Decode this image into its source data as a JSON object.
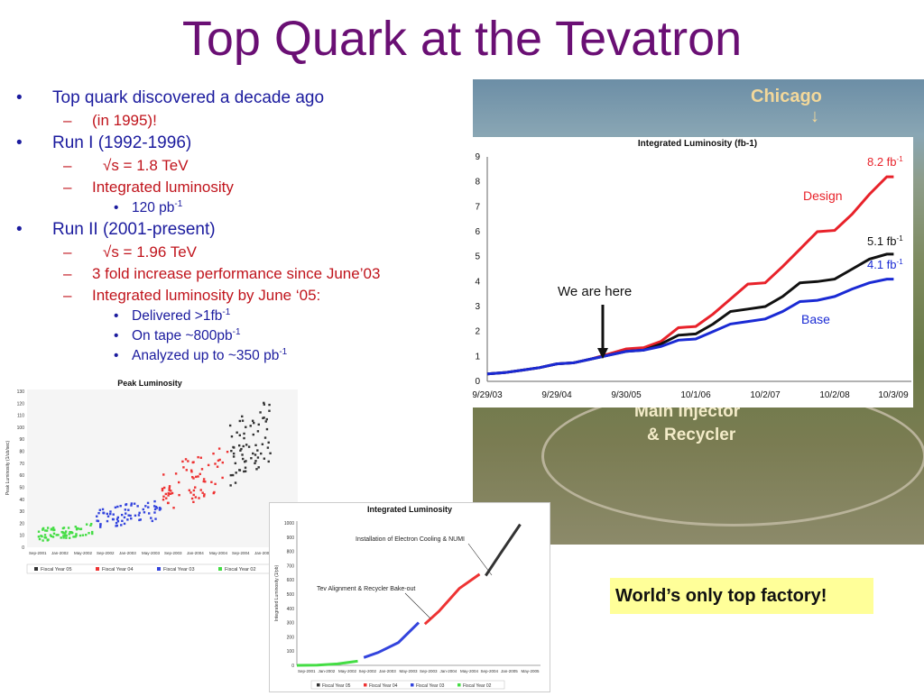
{
  "slide": {
    "title": "Top Quark at the Tevatron",
    "bullets": [
      {
        "text": "Top quark discovered a decade ago"
      },
      {
        "text": "(in 1995)!"
      },
      {
        "text": "Run I (1992-1996)"
      },
      {
        "text": "√s = 1.8 TeV"
      },
      {
        "text": "Integrated luminosity"
      },
      {
        "text": "120 pb",
        "sup": "-1"
      },
      {
        "text": "Run II (2001-present)"
      },
      {
        "text": "√s = 1.96 TeV"
      },
      {
        "text": "3 fold increase performance since June’03"
      },
      {
        "text": "Integrated luminosity by June ‘05:"
      },
      {
        "text": "Delivered >1fb",
        "sup": "-1"
      },
      {
        "text": "On tape ~800pb",
        "sup": "-1"
      },
      {
        "text": "Analyzed up to ~350 pb",
        "sup": "-1"
      }
    ],
    "aerial": {
      "chicago_label": "Chicago",
      "arrow": "↓",
      "main_injector_label_1": "Main Injector",
      "main_injector_label_2": "& Recycler"
    },
    "callout": "World’s only top factory!",
    "colors": {
      "title": "#6a0f74",
      "bullet_l1": "#1b1b9e",
      "bullet_l2": "#c0141c"
    }
  },
  "chart_data": [
    {
      "type": "line",
      "title": "Integrated Luminosity (fb-1)",
      "x_tick_labels": [
        "9/29/03",
        "9/29/04",
        "9/30/05",
        "10/1/06",
        "10/2/07",
        "10/2/08",
        "10/3/09"
      ],
      "ylim": [
        0,
        9
      ],
      "y_ticks": [
        "0",
        "1",
        "2",
        "3",
        "4",
        "5",
        "6",
        "7",
        "8",
        "9"
      ],
      "grid": false,
      "series": [
        {
          "name": "Design",
          "color": "#e8222a",
          "end_label": "8.2 fb",
          "end_sup": "-1",
          "points": [
            [
              0,
              0.3
            ],
            [
              0.25,
              0.35
            ],
            [
              0.5,
              0.45
            ],
            [
              0.75,
              0.55
            ],
            [
              1,
              0.7
            ],
            [
              1.25,
              0.75
            ],
            [
              1.5,
              0.9
            ],
            [
              1.75,
              1.1
            ],
            [
              2,
              1.3
            ],
            [
              2.25,
              1.35
            ],
            [
              2.5,
              1.6
            ],
            [
              2.75,
              2.15
            ],
            [
              3,
              2.2
            ],
            [
              3.25,
              2.7
            ],
            [
              3.5,
              3.3
            ],
            [
              3.75,
              3.9
            ],
            [
              4,
              3.95
            ],
            [
              4.25,
              4.6
            ],
            [
              4.5,
              5.3
            ],
            [
              4.75,
              6
            ],
            [
              5,
              6.05
            ],
            [
              5.25,
              6.7
            ],
            [
              5.5,
              7.5
            ],
            [
              5.75,
              8.2
            ],
            [
              5.85,
              8.2
            ]
          ]
        },
        {
          "name": "",
          "color": "#111111",
          "end_label": "5.1 fb",
          "end_sup": "-1",
          "points": [
            [
              0,
              0.3
            ],
            [
              0.25,
              0.35
            ],
            [
              0.5,
              0.45
            ],
            [
              0.75,
              0.55
            ],
            [
              1,
              0.7
            ],
            [
              1.25,
              0.75
            ],
            [
              1.5,
              0.9
            ],
            [
              1.75,
              1.05
            ],
            [
              2,
              1.2
            ],
            [
              2.25,
              1.25
            ],
            [
              2.5,
              1.5
            ],
            [
              2.75,
              1.85
            ],
            [
              3,
              1.9
            ],
            [
              3.25,
              2.3
            ],
            [
              3.5,
              2.8
            ],
            [
              3.75,
              2.9
            ],
            [
              4,
              3.0
            ],
            [
              4.25,
              3.4
            ],
            [
              4.5,
              3.95
            ],
            [
              4.75,
              4.0
            ],
            [
              5,
              4.1
            ],
            [
              5.25,
              4.5
            ],
            [
              5.5,
              4.9
            ],
            [
              5.75,
              5.1
            ],
            [
              5.85,
              5.1
            ]
          ]
        },
        {
          "name": "Base",
          "color": "#1a2ad4",
          "end_label": "4.1 fb",
          "end_sup": "-1",
          "points": [
            [
              0,
              0.3
            ],
            [
              0.25,
              0.35
            ],
            [
              0.5,
              0.45
            ],
            [
              0.75,
              0.55
            ],
            [
              1,
              0.7
            ],
            [
              1.25,
              0.75
            ],
            [
              1.5,
              0.9
            ],
            [
              1.75,
              1.05
            ],
            [
              2,
              1.2
            ],
            [
              2.25,
              1.25
            ],
            [
              2.5,
              1.4
            ],
            [
              2.75,
              1.65
            ],
            [
              3,
              1.7
            ],
            [
              3.25,
              2.0
            ],
            [
              3.5,
              2.3
            ],
            [
              3.75,
              2.4
            ],
            [
              4,
              2.5
            ],
            [
              4.25,
              2.8
            ],
            [
              4.5,
              3.2
            ],
            [
              4.75,
              3.25
            ],
            [
              5,
              3.4
            ],
            [
              5.25,
              3.7
            ],
            [
              5.5,
              3.95
            ],
            [
              5.75,
              4.1
            ],
            [
              5.85,
              4.1
            ]
          ]
        }
      ],
      "annotation": {
        "text": "We are here",
        "x": 1.75,
        "y": 1.1
      }
    },
    {
      "type": "scatter",
      "title": "Peak Luminosity",
      "ylabel": "Peak Luminosity (1/ub/sec)",
      "ylim": [
        0,
        130
      ],
      "y_ticks": [
        "0",
        "10",
        "20",
        "30",
        "40",
        "50",
        "60",
        "70",
        "80",
        "90",
        "100",
        "110",
        "120",
        "130"
      ],
      "x_tick_labels": [
        "Sep-2001",
        "Jan-2002",
        "May-2002",
        "Sep-2002",
        "Jan-2003",
        "May-2003",
        "Sep-2003",
        "Jan-2004",
        "May-2004",
        "Sep-2004",
        "Jan-2005",
        "May-2005"
      ],
      "legend": [
        "Fiscal Year 05",
        "Fiscal Year 04",
        "Fiscal Year 03",
        "Fiscal Year 02"
      ],
      "series": [
        {
          "name": "Fiscal Year 02",
          "color": "#44dd44",
          "x_range": [
            0.5,
            3.0
          ],
          "y_range": [
            5,
            20
          ]
        },
        {
          "name": "Fiscal Year 03",
          "color": "#3344dd",
          "x_range": [
            3.0,
            6.0
          ],
          "y_range": [
            15,
            40
          ]
        },
        {
          "name": "Fiscal Year 04",
          "color": "#ee3333",
          "x_range": [
            6.0,
            9.0
          ],
          "y_range": [
            30,
            85
          ]
        },
        {
          "name": "Fiscal Year 05",
          "color": "#333333",
          "x_range": [
            9.0,
            10.8
          ],
          "y_range": [
            50,
            125
          ]
        }
      ]
    },
    {
      "type": "line",
      "title": "Integrated Luminosity",
      "ylabel": "Integrated Luminosity (1/pb)",
      "ylim": [
        0,
        1000
      ],
      "y_ticks": [
        "0",
        "100",
        "200",
        "300",
        "400",
        "500",
        "600",
        "700",
        "800",
        "900",
        "1000"
      ],
      "x_tick_labels": [
        "Sep-2001",
        "Jan-2002",
        "May-2002",
        "Sep-2002",
        "Jan-2003",
        "May-2003",
        "Sep-2003",
        "Jan-2004",
        "May-2004",
        "Sep-2004",
        "Jan-2005",
        "May-2005"
      ],
      "legend": [
        "Fiscal Year 05",
        "Fiscal Year 04",
        "Fiscal Year 03",
        "Fiscal Year 02"
      ],
      "annotations": [
        "Installation of Electron Cooling & NUMI",
        "Tev Alignment & Recycler Bake-out"
      ],
      "series": [
        {
          "name": "Fiscal Year 02",
          "color": "#44dd44",
          "points": [
            [
              0,
              0
            ],
            [
              1,
              2
            ],
            [
              2,
              10
            ],
            [
              3,
              30
            ]
          ]
        },
        {
          "name": "Fiscal Year 03",
          "color": "#3344dd",
          "points": [
            [
              3.3,
              55
            ],
            [
              4,
              90
            ],
            [
              5,
              160
            ],
            [
              6,
              300
            ]
          ]
        },
        {
          "name": "Fiscal Year 04",
          "color": "#ee3333",
          "points": [
            [
              6.3,
              290
            ],
            [
              7,
              380
            ],
            [
              8,
              540
            ],
            [
              9,
              640
            ]
          ]
        },
        {
          "name": "Fiscal Year 05",
          "color": "#333333",
          "points": [
            [
              9.3,
              630
            ],
            [
              10,
              780
            ],
            [
              11,
              990
            ]
          ]
        }
      ]
    }
  ]
}
